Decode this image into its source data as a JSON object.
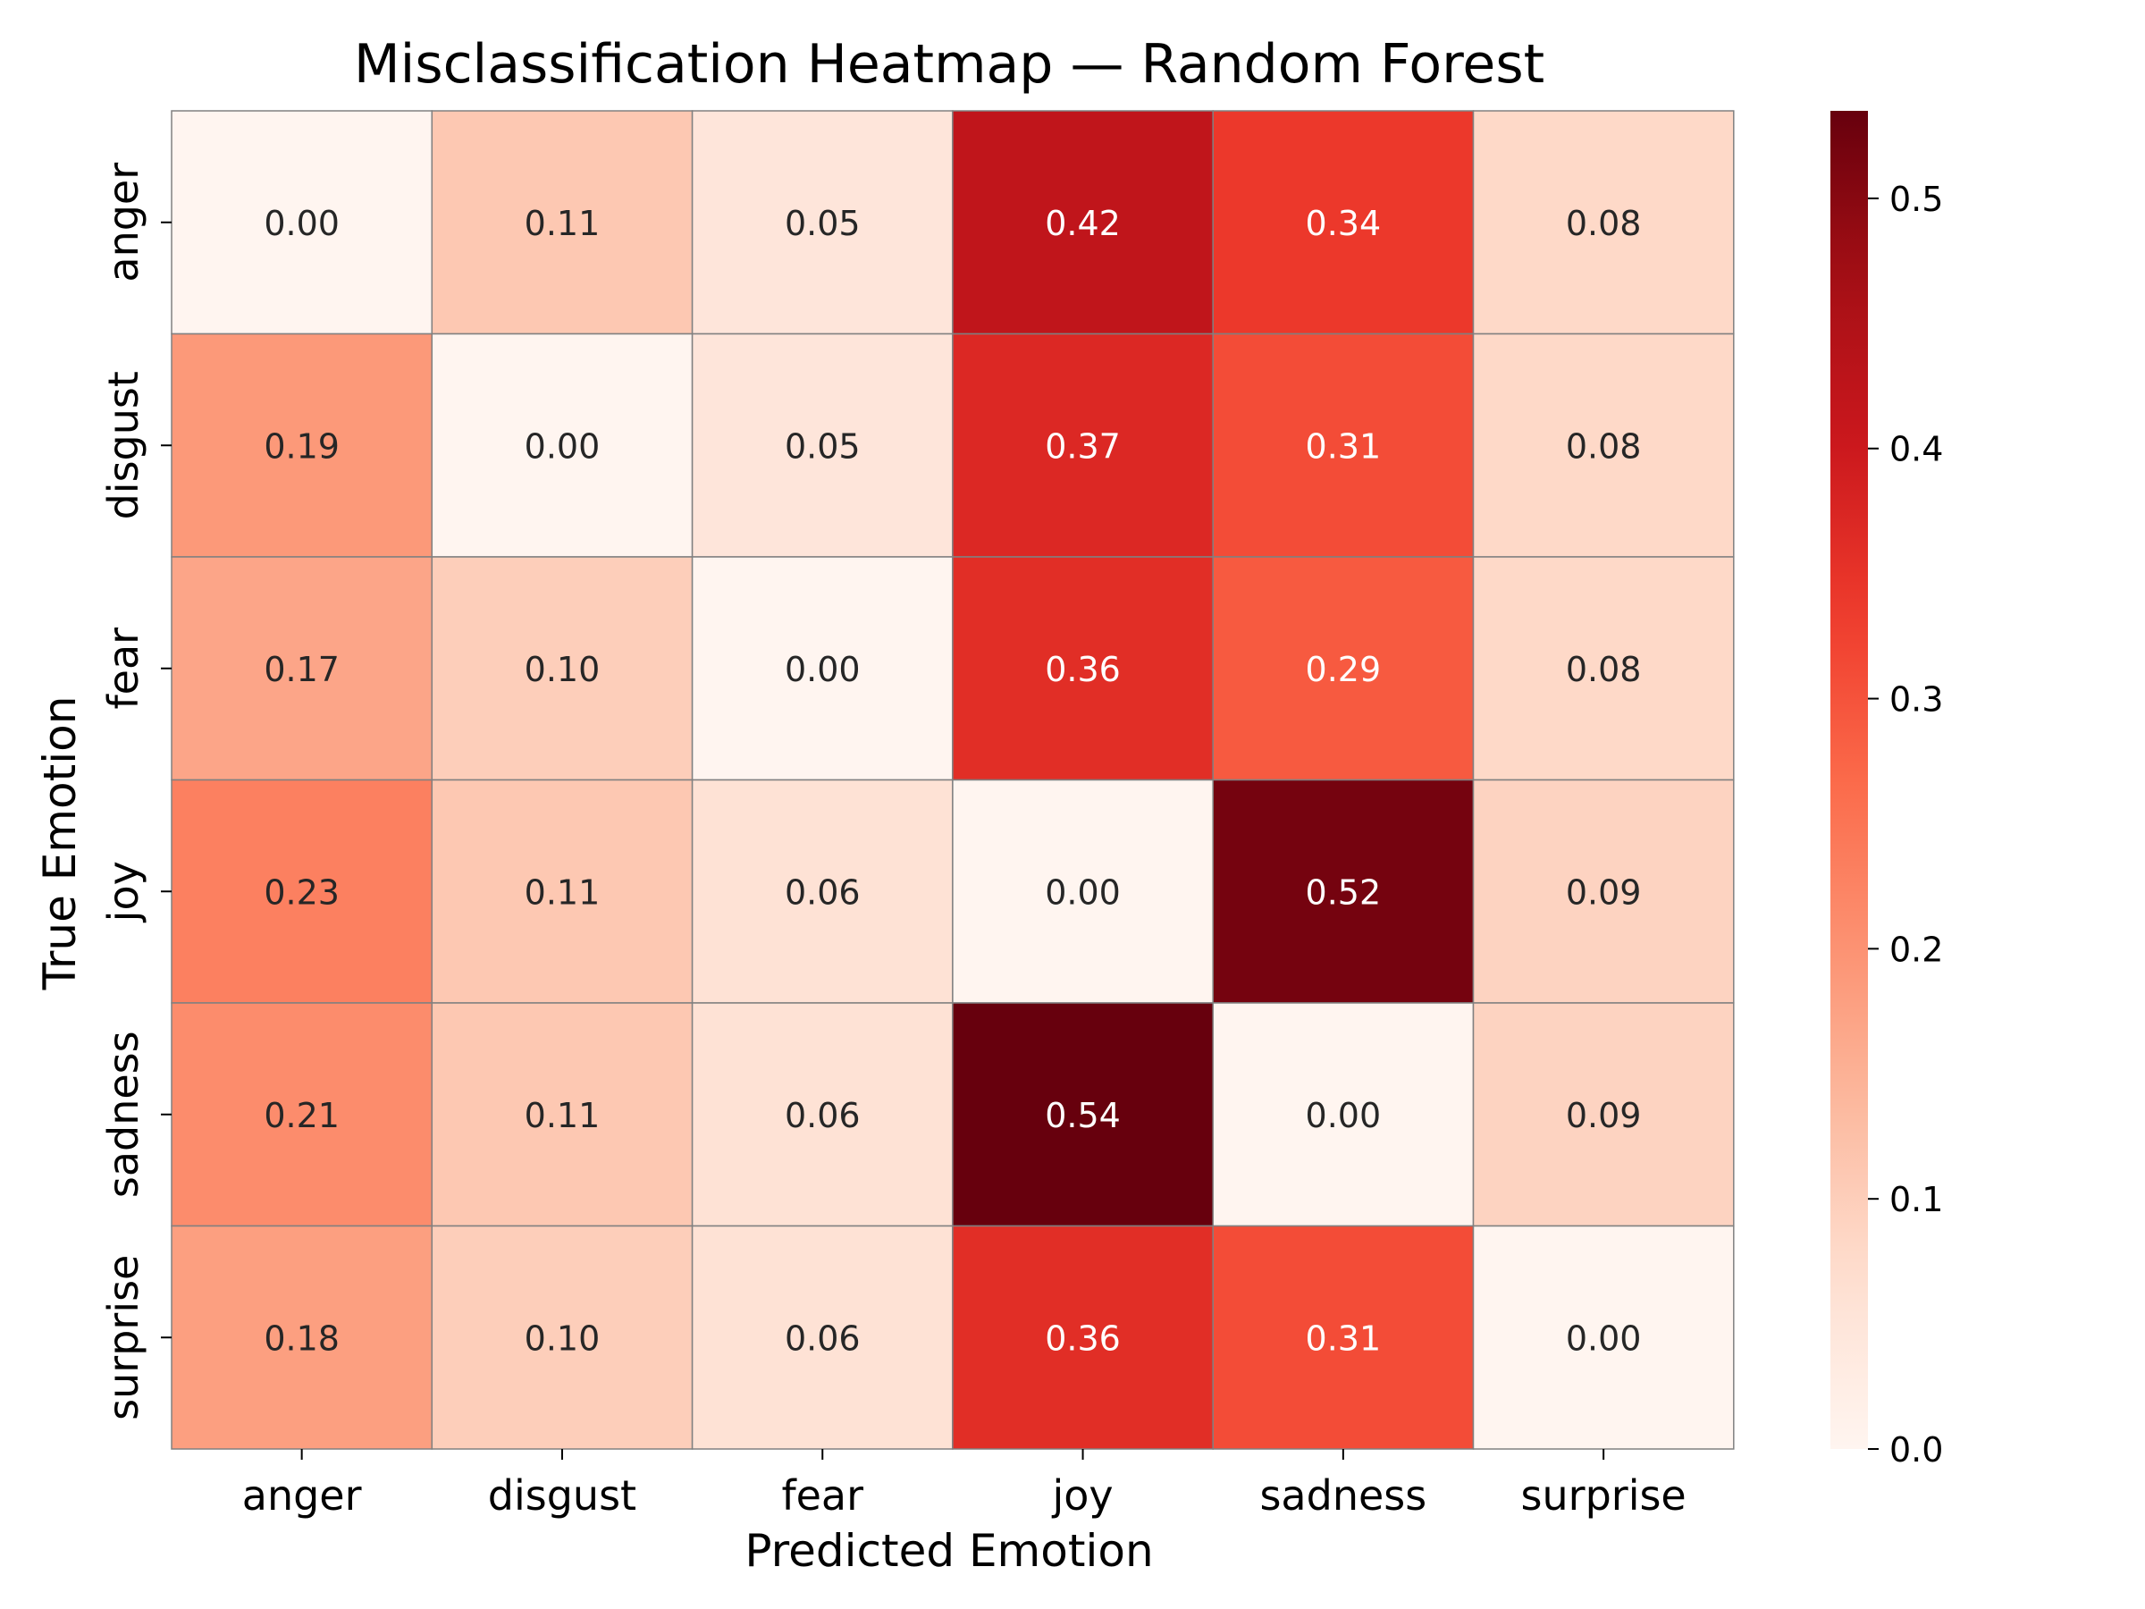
{
  "chart_data": {
    "type": "heatmap",
    "title": "Misclassification Heatmap — Random Forest",
    "xlabel": "Predicted Emotion",
    "ylabel": "True Emotion",
    "x_categories": [
      "anger",
      "disgust",
      "fear",
      "joy",
      "sadness",
      "surprise"
    ],
    "y_categories": [
      "anger",
      "disgust",
      "fear",
      "joy",
      "sadness",
      "surprise"
    ],
    "values": [
      [
        0.0,
        0.11,
        0.05,
        0.42,
        0.34,
        0.08
      ],
      [
        0.19,
        0.0,
        0.05,
        0.37,
        0.31,
        0.08
      ],
      [
        0.17,
        0.1,
        0.0,
        0.36,
        0.29,
        0.08
      ],
      [
        0.23,
        0.11,
        0.06,
        0.0,
        0.52,
        0.09
      ],
      [
        0.21,
        0.11,
        0.06,
        0.54,
        0.0,
        0.09
      ],
      [
        0.18,
        0.1,
        0.06,
        0.36,
        0.31,
        0.0
      ]
    ],
    "value_format": "0.00",
    "colormap": "Reds",
    "colorbar": {
      "range": [
        0.0,
        0.535
      ],
      "ticks": [
        0.0,
        0.1,
        0.2,
        0.3,
        0.4,
        0.5
      ],
      "tick_labels": [
        "0.0",
        "0.1",
        "0.2",
        "0.3",
        "0.4",
        "0.5"
      ]
    },
    "colors": {
      "cell_border": "#808080",
      "text_dark": "#262626",
      "text_light": "#ffffff"
    }
  }
}
